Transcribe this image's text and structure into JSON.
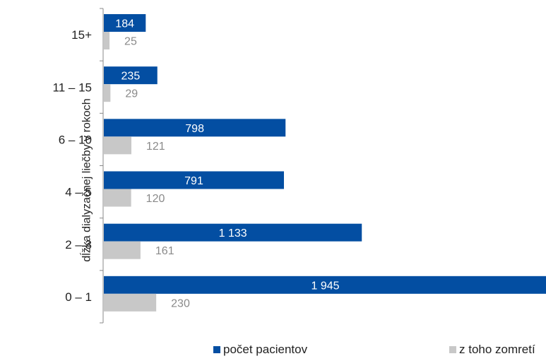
{
  "chart_data": {
    "type": "bar",
    "orientation": "horizontal",
    "ylabel": "dĺžka dialyzačnej liečby v rokoch",
    "xlabel": "",
    "categories": [
      "15+",
      "11 – 15",
      "6 – 10",
      "4 – 5",
      "2 – 3",
      "0 – 1"
    ],
    "series": [
      {
        "name": "počet pacientov",
        "color": "#034EA2",
        "values": [
          184,
          235,
          798,
          791,
          1133,
          1945
        ],
        "labels": [
          "184",
          "235",
          "798",
          "791",
          "1 133",
          "1 945"
        ]
      },
      {
        "name": "z toho zomretí",
        "color": "#C8C8C8",
        "values": [
          25,
          29,
          121,
          120,
          161,
          230
        ],
        "labels": [
          "25",
          "29",
          "121",
          "120",
          "161",
          "230"
        ]
      }
    ],
    "xlim": [
      0,
      1945
    ],
    "grid": false,
    "legend_position": "bottom"
  }
}
